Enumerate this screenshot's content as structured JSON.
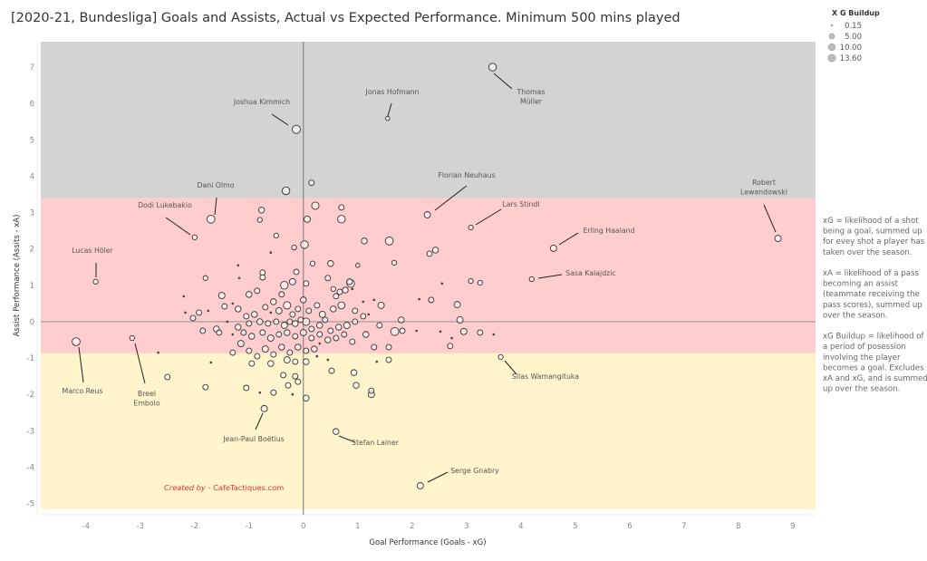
{
  "chart_data": {
    "type": "scatter",
    "title": "[2020-21, Bundesliga] Goals and Assists, Actual vs Expected Performance. Minimum 500 mins played",
    "xlabel": "Goal Performance (Goals - xG)",
    "ylabel": "Assist Performance (Assits - xA)",
    "xlim": [
      -4.83,
      9.42
    ],
    "ylim": [
      -5.16,
      7.7
    ],
    "xticks": [
      -4,
      -3,
      -2,
      -1,
      0,
      1,
      2,
      3,
      4,
      5,
      6,
      7,
      8,
      9
    ],
    "yticks": [
      -5,
      -4,
      -3,
      -2,
      -1,
      0,
      1,
      2,
      3,
      4,
      5,
      6,
      7
    ],
    "grid": false,
    "bands": [
      {
        "from": 3.4,
        "to": 7.7,
        "color": "#d3d3d3"
      },
      {
        "from": -0.87,
        "to": 3.4,
        "color": "#ffcdcd"
      },
      {
        "from": -5.16,
        "to": -0.87,
        "color": "#fff4cc"
      }
    ],
    "size_legend": {
      "title": "X G Buildup",
      "values": [
        "0.15",
        "5.00",
        "10.00",
        "13.60"
      ],
      "placement": "top-right"
    },
    "labeled_points": [
      {
        "name": "Thomas Müller",
        "lines": [
          "Thomas",
          "Müller"
        ],
        "x": 3.48,
        "y": 7.0,
        "b": 9
      },
      {
        "name": "Jonas Hofmann",
        "lines": [
          "Jonas Hofmann"
        ],
        "x": 1.55,
        "y": 5.59,
        "b": 1
      },
      {
        "name": "Joshua Kimmich",
        "lines": [
          "Joshua Kimmich"
        ],
        "x": -0.13,
        "y": 5.29,
        "b": 11
      },
      {
        "name": "Florian Neuhaus",
        "lines": [
          "Florian Neuhaus"
        ],
        "x": 2.28,
        "y": 2.94,
        "b": 5
      },
      {
        "name": "Lars Stindl",
        "lines": [
          "Lars Stindl"
        ],
        "x": 3.08,
        "y": 2.59,
        "b": 2
      },
      {
        "name": "Robert Lewandowski",
        "lines": [
          "Robert",
          "Lewandowski"
        ],
        "x": 8.73,
        "y": 2.29,
        "b": 5
      },
      {
        "name": "Erling Haaland",
        "lines": [
          "Erling Haaland"
        ],
        "x": 4.6,
        "y": 2.02,
        "b": 5
      },
      {
        "name": "Sasa Kalajdzic",
        "lines": [
          "Sasa Kalajdzic"
        ],
        "x": 4.2,
        "y": 1.17,
        "b": 2
      },
      {
        "name": "Dani Olmo",
        "lines": [
          "Dani Olmo"
        ],
        "x": -1.7,
        "y": 2.82,
        "b": 10
      },
      {
        "name": "Dodi Lukebakio",
        "lines": [
          "Dodi Lukebakio"
        ],
        "x": -2.0,
        "y": 2.32,
        "b": 2
      },
      {
        "name": "Lucas Höler",
        "lines": [
          "Lucas Höler"
        ],
        "x": -3.82,
        "y": 1.1,
        "b": 2
      },
      {
        "name": "Marco Reus",
        "lines": [
          "Marco Reus"
        ],
        "x": -4.18,
        "y": -0.55,
        "b": 10
      },
      {
        "name": "Breel Embolo",
        "lines": [
          "Breel",
          "Embolo"
        ],
        "x": -3.15,
        "y": -0.45,
        "b": 2
      },
      {
        "name": "Jean-Paul Boëtius",
        "lines": [
          "Jean-Paul Boëtius"
        ],
        "x": -0.72,
        "y": -2.39,
        "b": 5
      },
      {
        "name": "Stefan Lainer",
        "lines": [
          "Stefan Lainer"
        ],
        "x": 0.6,
        "y": -3.02,
        "b": 4
      },
      {
        "name": "Silas Wamangituka",
        "lines": [
          "Silas Wamangituka"
        ],
        "x": 3.63,
        "y": -0.97,
        "b": 2
      },
      {
        "name": "Serge Gnabry",
        "lines": [
          "Serge Gnabry"
        ],
        "x": 2.15,
        "y": -4.51,
        "b": 5
      }
    ],
    "points": [
      [
        -0.32,
        3.6,
        9
      ],
      [
        0.15,
        3.82,
        3
      ],
      [
        0.22,
        3.19,
        8
      ],
      [
        0.7,
        3.14,
        3
      ],
      [
        0.7,
        2.82,
        9
      ],
      [
        0.07,
        2.82,
        5
      ],
      [
        -0.77,
        3.07,
        4
      ],
      [
        -0.8,
        2.8,
        2
      ],
      [
        -0.5,
        2.37,
        2
      ],
      [
        -0.17,
        2.04,
        2
      ],
      [
        0.02,
        2.12,
        9
      ],
      [
        0.17,
        1.6,
        2
      ],
      [
        0.5,
        1.6,
        4
      ],
      [
        1.0,
        1.55,
        1
      ],
      [
        1.67,
        1.62,
        2
      ],
      [
        1.12,
        2.22,
        4
      ],
      [
        1.58,
        2.22,
        10
      ],
      [
        2.32,
        1.87,
        3
      ],
      [
        2.43,
        1.97,
        4
      ],
      [
        2.55,
        1.05,
        0.5
      ],
      [
        3.08,
        1.12,
        2
      ],
      [
        3.25,
        1.07,
        2
      ],
      [
        0.87,
        1.05,
        9
      ],
      [
        0.85,
        1.1,
        4
      ],
      [
        0.7,
        0.45,
        7
      ],
      [
        1.43,
        0.45,
        5
      ],
      [
        0.77,
        0.87,
        4
      ],
      [
        0.67,
        0.82,
        3
      ],
      [
        0.55,
        0.9,
        2
      ],
      [
        2.83,
        0.47,
        5
      ],
      [
        2.88,
        0.05,
        5
      ],
      [
        2.95,
        -0.27,
        5
      ],
      [
        3.25,
        -0.3,
        3
      ],
      [
        3.5,
        -0.35,
        0.5
      ],
      [
        1.3,
        -0.7,
        3
      ],
      [
        1.68,
        -0.27,
        10
      ],
      [
        1.8,
        0.05,
        4
      ],
      [
        1.82,
        -0.25,
        3
      ],
      [
        1.57,
        -0.7,
        3
      ],
      [
        1.57,
        -1.05,
        3
      ],
      [
        1.35,
        -1.1,
        0.5
      ],
      [
        0.93,
        -1.4,
        4
      ],
      [
        0.52,
        -1.35,
        3
      ],
      [
        0.97,
        -1.75,
        4
      ],
      [
        1.25,
        -2.0,
        5
      ],
      [
        1.25,
        -1.9,
        3
      ],
      [
        2.08,
        -0.25,
        0.5
      ],
      [
        2.13,
        0.62,
        0.5
      ],
      [
        2.35,
        0.6,
        3
      ],
      [
        2.7,
        -0.67,
        3
      ],
      [
        2.73,
        -0.45,
        0.5
      ],
      [
        2.52,
        -0.27,
        0.5
      ],
      [
        1.2,
        0.2,
        0.5
      ],
      [
        1.1,
        0.15,
        3
      ],
      [
        1.3,
        0.6,
        0.5
      ],
      [
        0.95,
        0.3,
        3
      ],
      [
        -1.8,
        1.2,
        2
      ],
      [
        -1.18,
        1.2,
        0.5
      ],
      [
        -0.75,
        1.35,
        3
      ],
      [
        -0.75,
        1.22,
        3
      ],
      [
        -0.13,
        1.37,
        3
      ],
      [
        -0.2,
        1.1,
        5
      ],
      [
        0.05,
        1.05,
        3
      ],
      [
        -0.35,
        1.0,
        9
      ],
      [
        -0.4,
        0.75,
        3
      ],
      [
        -0.55,
        0.55,
        4
      ],
      [
        -0.85,
        0.85,
        3
      ],
      [
        -1.0,
        0.75,
        4
      ],
      [
        -1.5,
        0.72,
        5
      ],
      [
        -1.45,
        0.42,
        3
      ],
      [
        -2.2,
        0.7,
        0.5
      ],
      [
        -1.92,
        0.25,
        3
      ],
      [
        -2.03,
        0.1,
        3
      ],
      [
        -2.17,
        0.25,
        0.5
      ],
      [
        -1.75,
        0.3,
        0.5
      ],
      [
        -1.3,
        0.5,
        0.5
      ],
      [
        -1.2,
        0.35,
        4
      ],
      [
        -1.05,
        0.15,
        3
      ],
      [
        -0.9,
        0.2,
        4
      ],
      [
        -0.7,
        0.4,
        3
      ],
      [
        -0.6,
        0.25,
        0.5
      ],
      [
        -0.45,
        0.3,
        5
      ],
      [
        -0.3,
        0.45,
        8
      ],
      [
        -0.2,
        0.2,
        3
      ],
      [
        -0.1,
        0.35,
        3
      ],
      [
        0.0,
        0.6,
        4
      ],
      [
        0.1,
        0.3,
        3
      ],
      [
        0.25,
        0.45,
        3
      ],
      [
        0.35,
        0.2,
        5
      ],
      [
        0.4,
        0.05,
        3
      ],
      [
        0.3,
        -0.1,
        4
      ],
      [
        0.15,
        -0.2,
        3
      ],
      [
        0.05,
        0.0,
        8
      ],
      [
        -0.05,
        0.05,
        3
      ],
      [
        -0.15,
        -0.05,
        4
      ],
      [
        -0.25,
        0.0,
        3
      ],
      [
        -0.35,
        -0.1,
        5
      ],
      [
        -0.5,
        0.0,
        3
      ],
      [
        -0.65,
        -0.05,
        3
      ],
      [
        -0.8,
        0.0,
        4
      ],
      [
        -1.0,
        -0.05,
        3
      ],
      [
        -1.2,
        -0.15,
        4
      ],
      [
        -1.4,
        0.0,
        0.5
      ],
      [
        -1.6,
        -0.2,
        4
      ],
      [
        -1.55,
        -0.3,
        3
      ],
      [
        -1.3,
        -0.35,
        0.5
      ],
      [
        -1.1,
        -0.3,
        3
      ],
      [
        -0.95,
        -0.4,
        4
      ],
      [
        -0.75,
        -0.3,
        3
      ],
      [
        -0.6,
        -0.45,
        5
      ],
      [
        -0.45,
        -0.35,
        3
      ],
      [
        -0.3,
        -0.3,
        4
      ],
      [
        -0.15,
        -0.4,
        3
      ],
      [
        0.0,
        -0.3,
        5
      ],
      [
        0.15,
        -0.45,
        3
      ],
      [
        0.3,
        -0.35,
        3
      ],
      [
        0.45,
        -0.5,
        4
      ],
      [
        0.6,
        -0.45,
        3
      ],
      [
        0.75,
        -0.35,
        3
      ],
      [
        0.9,
        -0.55,
        3
      ],
      [
        0.5,
        -0.25,
        3
      ],
      [
        0.65,
        -0.15,
        4
      ],
      [
        0.8,
        -0.1,
        5
      ],
      [
        0.95,
        0.0,
        3
      ],
      [
        0.3,
        -0.6,
        0.5
      ],
      [
        0.2,
        -0.75,
        4
      ],
      [
        0.05,
        -0.8,
        3
      ],
      [
        -0.1,
        -0.7,
        4
      ],
      [
        -0.25,
        -0.85,
        3
      ],
      [
        -0.4,
        -0.7,
        4
      ],
      [
        -0.55,
        -0.9,
        3
      ],
      [
        -0.7,
        -0.75,
        5
      ],
      [
        -0.85,
        -0.95,
        3
      ],
      [
        -1.0,
        -0.8,
        3
      ],
      [
        -1.15,
        -0.6,
        5
      ],
      [
        -1.3,
        -0.85,
        3
      ],
      [
        -0.95,
        -1.15,
        3
      ],
      [
        -0.6,
        -1.15,
        4
      ],
      [
        -0.3,
        -1.05,
        5
      ],
      [
        -0.15,
        -1.1,
        3
      ],
      [
        0.05,
        -1.1,
        4
      ],
      [
        0.25,
        -0.95,
        0.5
      ],
      [
        0.45,
        -1.05,
        0.5
      ],
      [
        -1.7,
        -1.12,
        0.5
      ],
      [
        -1.8,
        -1.8,
        3
      ],
      [
        -1.05,
        -1.82,
        3
      ],
      [
        -0.8,
        -1.95,
        0.5
      ],
      [
        -0.55,
        -1.95,
        3
      ],
      [
        -0.28,
        -1.75,
        3
      ],
      [
        -0.37,
        -1.47,
        3
      ],
      [
        -0.15,
        -1.5,
        3
      ],
      [
        -0.1,
        -1.65,
        3
      ],
      [
        -0.2,
        -2.0,
        0.5
      ],
      [
        0.05,
        -2.1,
        4
      ],
      [
        -2.5,
        -1.52,
        3
      ],
      [
        -2.67,
        -0.85,
        0.5
      ],
      [
        -1.85,
        -0.25,
        3
      ],
      [
        0.55,
        0.35,
        4
      ],
      [
        0.6,
        0.7,
        3
      ],
      [
        0.45,
        1.2,
        3
      ],
      [
        1.4,
        -0.1,
        3
      ],
      [
        1.15,
        -0.35,
        4
      ],
      [
        1.1,
        0.55,
        0.5
      ],
      [
        -0.6,
        1.9,
        0.5
      ],
      [
        -1.2,
        1.55,
        0.5
      ],
      [
        0.9,
        0.9,
        0.5
      ]
    ],
    "notes": [
      [
        "xG = likelihood of a shot",
        "being a goal, summed up",
        "for evey shot a player has",
        "taken over the season."
      ],
      [
        "xA = likelihood of a pass",
        "becoming an assist",
        "(teammate receiving the",
        "pass scores), summed up",
        "over the season."
      ],
      [
        "xG Buildup = likelihood of",
        "a period of posession",
        "involving the player",
        "becomes a goal. Excludes",
        "xA and xG, and is summed",
        "up over the season."
      ]
    ],
    "credit": {
      "prefix": "Created by",
      "suffix": " - CafeTactiques.com",
      "color": "#e0333d"
    }
  }
}
